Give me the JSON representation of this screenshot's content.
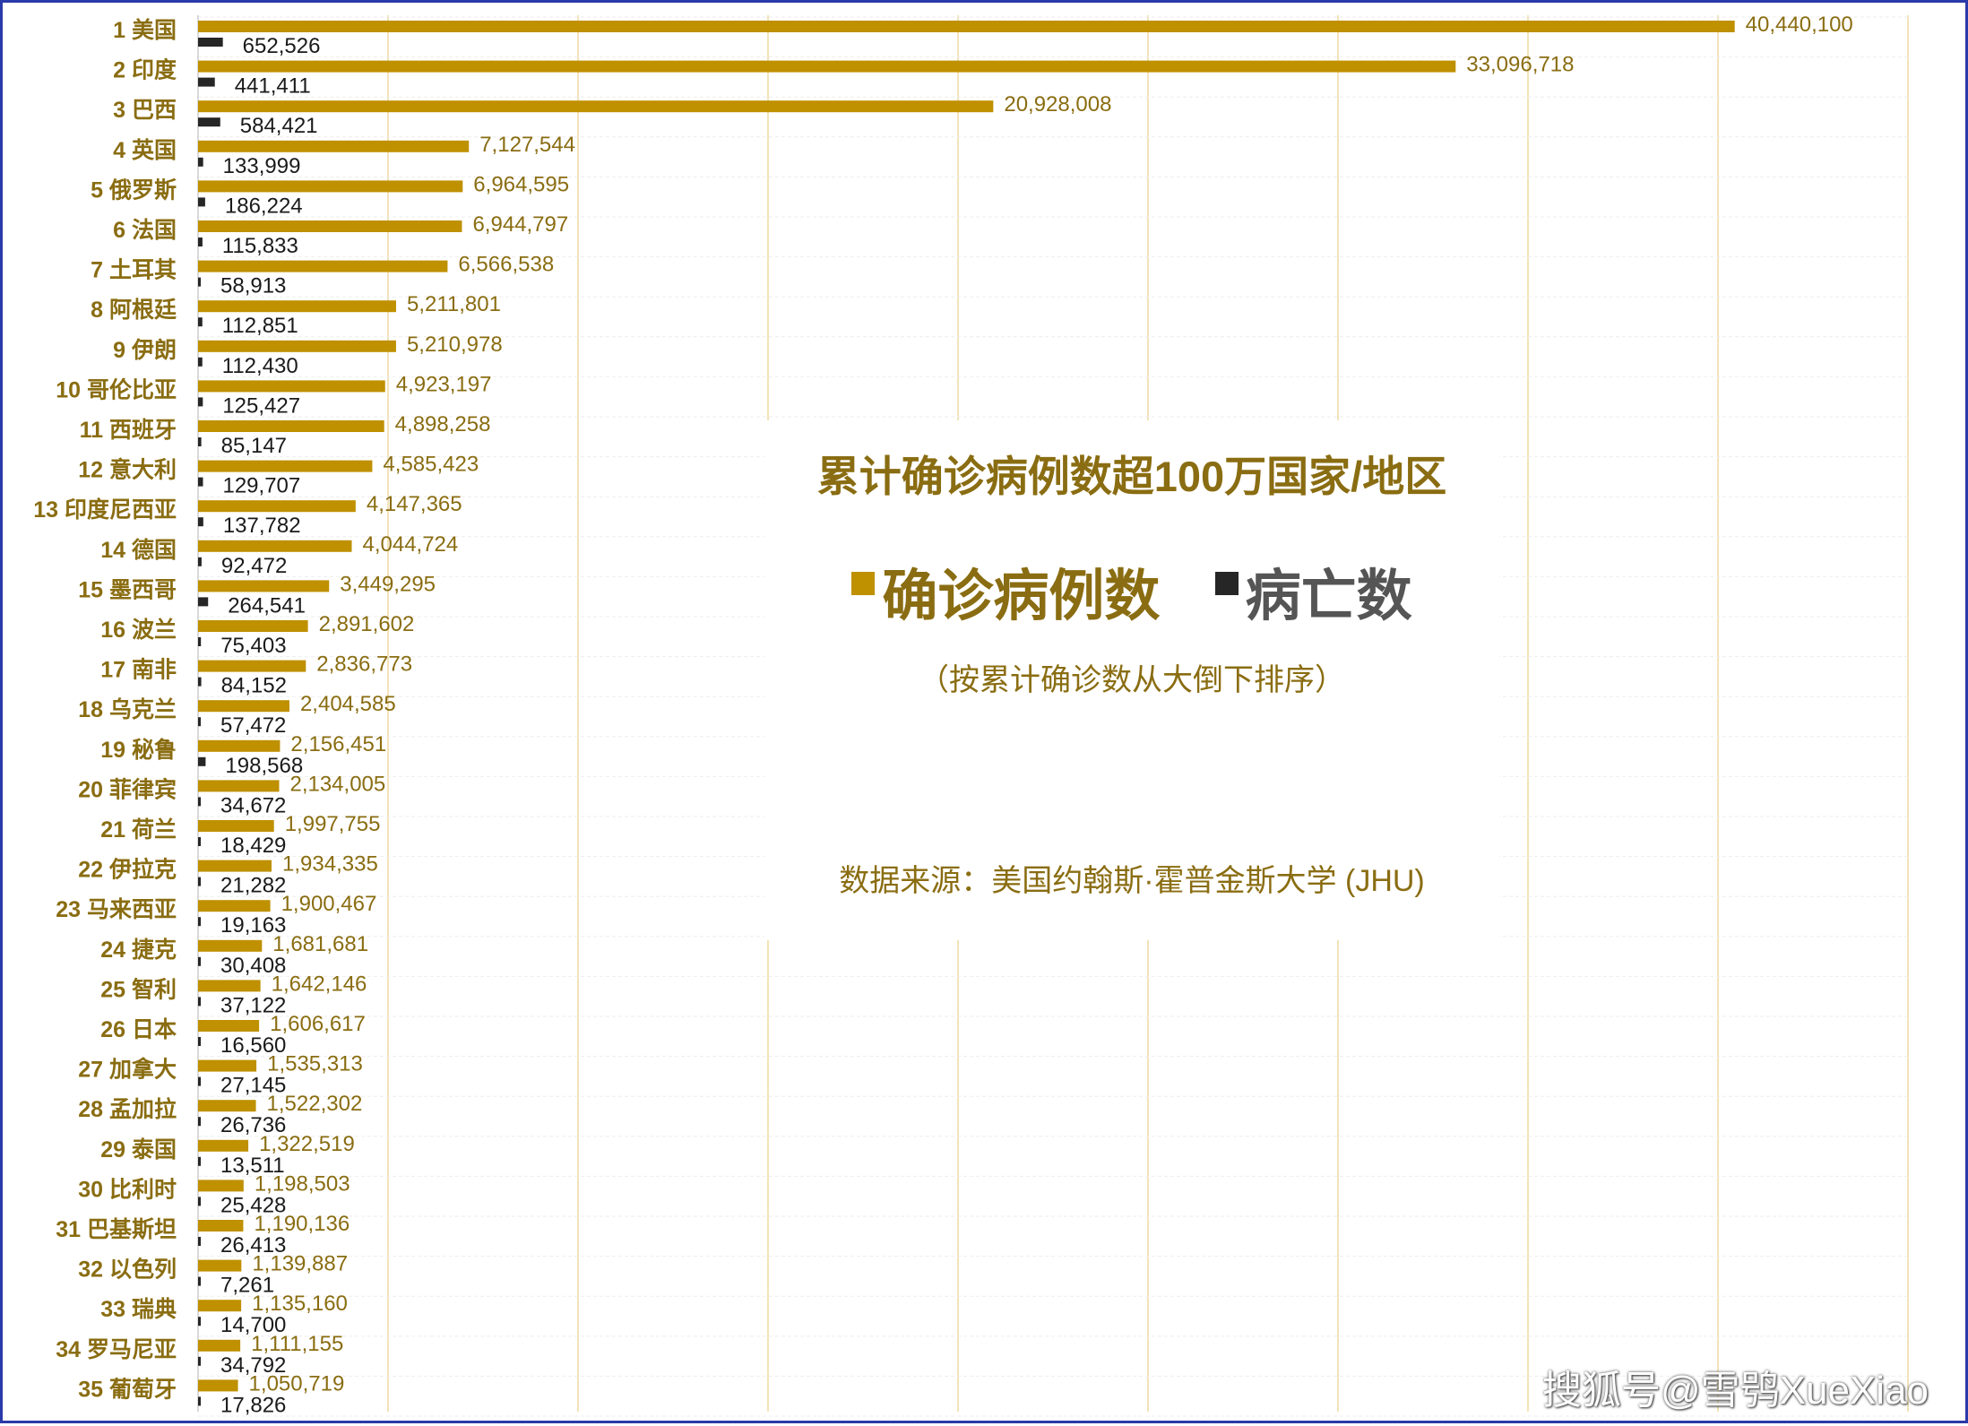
{
  "chart_data": {
    "type": "bar",
    "title": "累计确诊病例数超100万国家/地区",
    "subtitle": "（按累计确诊数从大倒下排序）",
    "source": "数据来源：美国约翰斯·霍普金斯大学 (JHU)",
    "orientation": "horizontal",
    "grid": true,
    "legend_placement": "center",
    "colors": {
      "confirmed": "#bf9000",
      "deaths": "#262626",
      "grid": "#f2e3b8"
    },
    "xlim": [
      0,
      45000000
    ],
    "categories": [
      "1 美国",
      "2 印度",
      "3 巴西",
      "4 英国",
      "5 俄罗斯",
      "6 法国",
      "7 土耳其",
      "8 阿根廷",
      "9 伊朗",
      "10 哥伦比亚",
      "11 西班牙",
      "12 意大利",
      "13 印度尼西亚",
      "14 德国",
      "15 墨西哥",
      "16 波兰",
      "17 南非",
      "18 乌克兰",
      "19 秘鲁",
      "20 菲律宾",
      "21 荷兰",
      "22 伊拉克",
      "23 马来西亚",
      "24 捷克",
      "25 智利",
      "26 日本",
      "27 加拿大",
      "28 孟加拉",
      "29 泰国",
      "30 比利时",
      "31 巴基斯坦",
      "32 以色列",
      "33 瑞典",
      "34 罗马尼亚",
      "35 葡萄牙"
    ],
    "series": [
      {
        "name": "确诊病例数",
        "values": [
          40440100,
          33096718,
          20928008,
          7127544,
          6964595,
          6944797,
          6566538,
          5211801,
          5210978,
          4923197,
          4898258,
          4585423,
          4147365,
          4044724,
          3449295,
          2891602,
          2836773,
          2404585,
          2156451,
          2134005,
          1997755,
          1934335,
          1900467,
          1681681,
          1642146,
          1606617,
          1535313,
          1522302,
          1322519,
          1198503,
          1190136,
          1139887,
          1135160,
          1111155,
          1050719
        ]
      },
      {
        "name": "病亡数",
        "values": [
          652526,
          441411,
          584421,
          133999,
          186224,
          115833,
          58913,
          112851,
          112430,
          125427,
          85147,
          129707,
          137782,
          92472,
          264541,
          75403,
          84152,
          57472,
          198568,
          34672,
          18429,
          21282,
          19163,
          30408,
          37122,
          16560,
          27145,
          26736,
          13511,
          25428,
          26413,
          7261,
          14700,
          34792,
          17826
        ]
      }
    ]
  },
  "watermark": "搜狐号@雪鸮XueXiao"
}
